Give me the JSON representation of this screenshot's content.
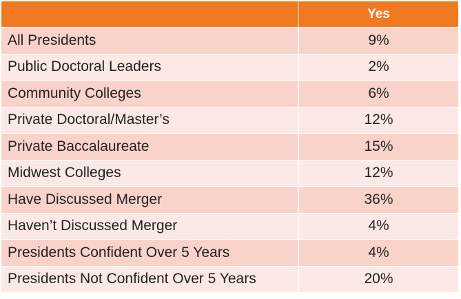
{
  "table": {
    "header": {
      "label": "",
      "value": "Yes"
    },
    "rows": [
      {
        "label": "All Presidents",
        "value": "9%"
      },
      {
        "label": "Public Doctoral Leaders",
        "value": "2%"
      },
      {
        "label": "Community Colleges",
        "value": "6%"
      },
      {
        "label": "Private Doctoral/Master’s",
        "value": "12%"
      },
      {
        "label": "Private Baccalaureate",
        "value": "15%"
      },
      {
        "label": "Midwest Colleges",
        "value": "12%"
      },
      {
        "label": "Have Discussed Merger",
        "value": "36%"
      },
      {
        "label": "Haven’t Discussed Merger",
        "value": "4%"
      },
      {
        "label": "Presidents Confident Over 5 Years",
        "value": "4%"
      },
      {
        "label": "Presidents Not Confident Over 5 Years",
        "value": "20%"
      }
    ],
    "colors": {
      "header": "#f07a22",
      "row_dark": "#f9d3c9",
      "row_light": "#fce9e5"
    }
  }
}
